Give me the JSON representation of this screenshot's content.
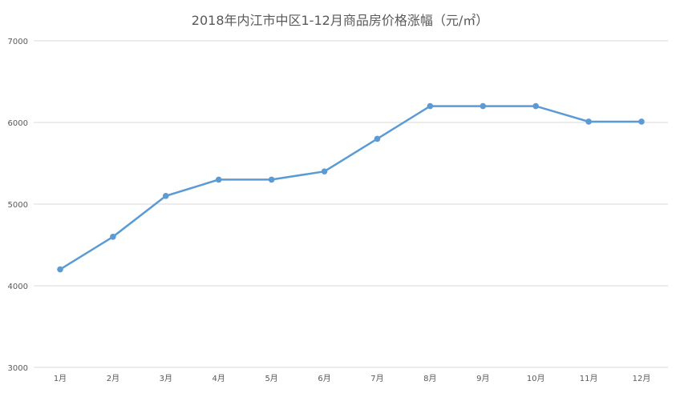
{
  "chart_data": {
    "type": "line",
    "title": "2018年内江市中区1-12月商品房价格涨幅（元/㎡）",
    "xlabel": "",
    "ylabel": "",
    "categories": [
      "1月",
      "2月",
      "3月",
      "4月",
      "5月",
      "6月",
      "7月",
      "8月",
      "9月",
      "10月",
      "11月",
      "12月"
    ],
    "series": [
      {
        "values": [
          4200,
          4600,
          5100,
          5300,
          5300,
          5400,
          5800,
          6200,
          6200,
          6200,
          6010,
          6010
        ],
        "color": "#5b9bd5"
      }
    ],
    "ylim": [
      3000,
      7000
    ],
    "yticks": [
      3000,
      4000,
      5000,
      6000,
      7000
    ],
    "grid": true,
    "legend": "none"
  }
}
